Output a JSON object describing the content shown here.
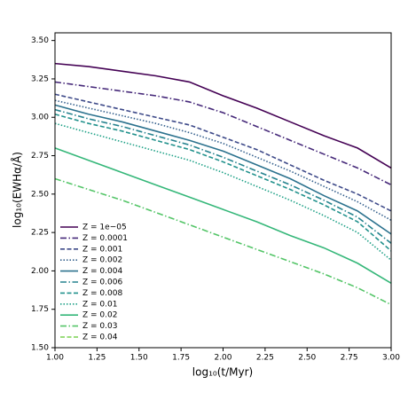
{
  "chart_data": {
    "type": "line",
    "x_label": "log₁₀(t/Myr)",
    "y_label": "log₁₀(EWHα/Å)",
    "x": [
      1.0,
      1.2,
      1.4,
      1.6,
      1.8,
      2.0,
      2.2,
      2.4,
      2.6,
      2.8,
      3.0
    ],
    "xlim": [
      1.0,
      3.0
    ],
    "xticks": [
      {
        "value": 1.0,
        "label": "1.00"
      },
      1.25,
      {
        "value": 1.5,
        "label": "1.50"
      },
      1.75,
      {
        "value": 2.0,
        "label": "2.00"
      },
      2.25,
      {
        "value": 2.5,
        "label": "2.50"
      },
      2.75,
      {
        "value": 3.0,
        "label": "3.00"
      }
    ],
    "ylim": [
      1.5,
      3.55
    ],
    "yticks": [
      {
        "value": 1.5,
        "label": "1.50"
      },
      1.75,
      {
        "value": 2.0,
        "label": "2.00"
      },
      2.25,
      {
        "value": 2.5,
        "label": "2.50"
      },
      2.75,
      {
        "value": 3.0,
        "label": "3.00"
      },
      3.25,
      {
        "value": 3.5,
        "label": "3.50"
      }
    ],
    "legend": "lower left",
    "series": [
      {
        "name": "Z = 1e−05",
        "color": "#440154",
        "dash": "solid",
        "values": [
          3.35,
          3.33,
          3.3,
          3.27,
          3.23,
          3.14,
          3.06,
          2.97,
          2.88,
          2.8,
          2.67
        ]
      },
      {
        "name": "Z = 0.0001",
        "color": "#472a7a",
        "dash": "dashdot",
        "values": [
          3.23,
          3.2,
          3.17,
          3.14,
          3.1,
          3.03,
          2.94,
          2.85,
          2.76,
          2.67,
          2.56
        ]
      },
      {
        "name": "Z = 0.001",
        "color": "#3e4a89",
        "dash": "dashed",
        "values": [
          3.15,
          3.1,
          3.05,
          3.0,
          2.95,
          2.87,
          2.79,
          2.69,
          2.59,
          2.5,
          2.39
        ]
      },
      {
        "name": "Z = 0.002",
        "color": "#35608d",
        "dash": "dotted",
        "values": [
          3.11,
          3.06,
          3.01,
          2.96,
          2.9,
          2.83,
          2.74,
          2.65,
          2.55,
          2.45,
          2.33
        ]
      },
      {
        "name": "Z = 0.004",
        "color": "#2c728e",
        "dash": "solid",
        "values": [
          3.08,
          3.02,
          2.97,
          2.91,
          2.85,
          2.78,
          2.69,
          2.6,
          2.49,
          2.39,
          2.24
        ]
      },
      {
        "name": "Z = 0.006",
        "color": "#26838f",
        "dash": "dashdot",
        "values": [
          3.05,
          2.99,
          2.94,
          2.88,
          2.82,
          2.74,
          2.65,
          2.56,
          2.46,
          2.35,
          2.18
        ]
      },
      {
        "name": "Z = 0.008",
        "color": "#21918c",
        "dash": "dashed",
        "values": [
          3.02,
          2.96,
          2.91,
          2.85,
          2.79,
          2.71,
          2.62,
          2.53,
          2.43,
          2.32,
          2.13
        ]
      },
      {
        "name": "Z = 0.01",
        "color": "#1fa187",
        "dash": "dotted",
        "values": [
          2.96,
          2.9,
          2.84,
          2.78,
          2.72,
          2.64,
          2.55,
          2.46,
          2.36,
          2.25,
          2.07
        ]
      },
      {
        "name": "Z = 0.02",
        "color": "#35b779",
        "dash": "solid",
        "values": [
          2.8,
          2.72,
          2.64,
          2.56,
          2.48,
          2.4,
          2.32,
          2.23,
          2.15,
          2.05,
          1.92
        ]
      },
      {
        "name": "Z = 0.03",
        "color": "#54c568",
        "dash": "dashdot",
        "values": [
          2.6,
          2.53,
          2.46,
          2.38,
          2.3,
          2.22,
          2.14,
          2.06,
          1.98,
          1.89,
          1.78
        ]
      },
      {
        "name": "Z = 0.04",
        "color": "#7ad151",
        "dash": "dashed",
        "values": [
          null,
          null,
          null,
          null,
          null,
          null,
          null,
          null,
          null,
          null,
          null
        ]
      }
    ]
  }
}
